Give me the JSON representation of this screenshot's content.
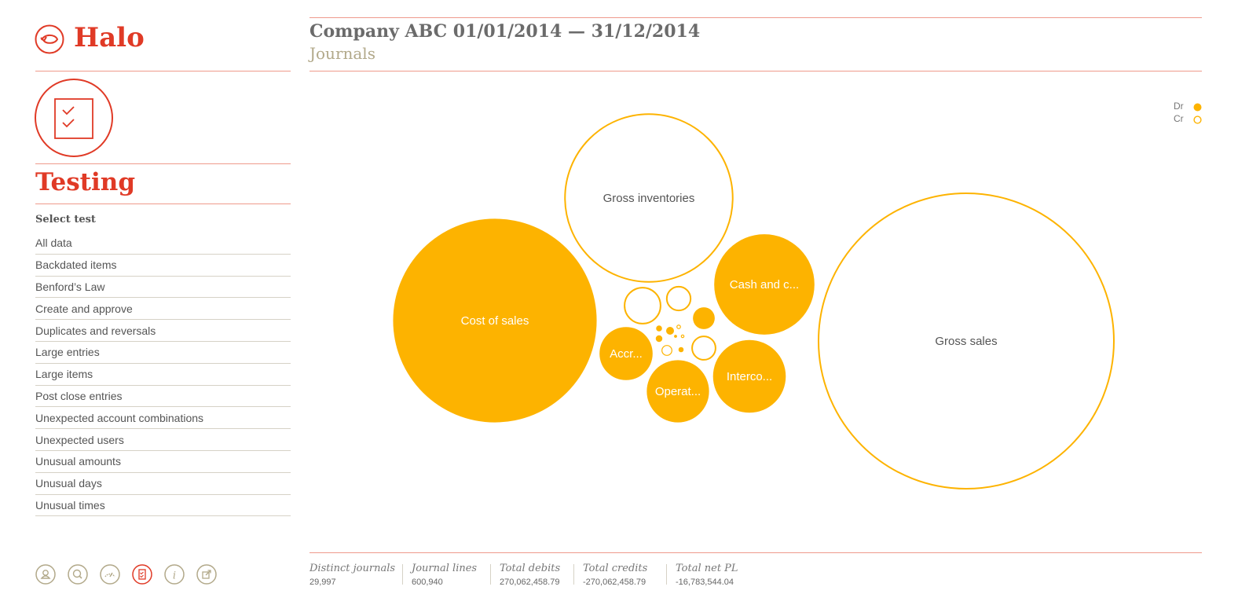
{
  "app": {
    "name": "Halo"
  },
  "section": {
    "title": "Testing",
    "select_label": "Select test"
  },
  "tests": [
    "All data",
    "Backdated items",
    "Benford’s Law",
    "Create and approve",
    "Duplicates and reversals",
    "Large entries",
    "Large items",
    "Post close entries",
    "Unexpected account combinations",
    "Unexpected users",
    "Unusual amounts",
    "Unusual days",
    "Unusual times"
  ],
  "header": {
    "title": "Company ABC 01/01/2014 — 31/12/2014",
    "subtitle": "Journals"
  },
  "legend": {
    "dr": "Dr",
    "cr": "Cr"
  },
  "colors": {
    "accent": "#e03a26",
    "bubble": "#fdb300",
    "rule": "#ef9a8c"
  },
  "footer_icons": [
    "user-icon",
    "search-icon",
    "speedometer-icon",
    "checklist-icon",
    "info-icon",
    "export-icon"
  ],
  "stats": [
    {
      "label": "Distinct journals",
      "value": "29,997"
    },
    {
      "label": "Journal lines",
      "value": "600,940"
    },
    {
      "label": "Total debits",
      "value": "270,062,458.79"
    },
    {
      "label": "Total credits",
      "value": "-270,062,458.79"
    },
    {
      "label": "Total net PL",
      "value": "-16,783,544.04"
    }
  ],
  "chart_data": {
    "type": "bubble",
    "legend_position": "top-right",
    "bubbles": [
      {
        "label": "Gross sales",
        "type": "Cr",
        "size": 100
      },
      {
        "label": "Cost of sales",
        "type": "Dr",
        "size": 47
      },
      {
        "label": "Gross inventories",
        "type": "Cr",
        "size": 32.5
      },
      {
        "label": "Cash and c...",
        "type": "Dr",
        "size": 11.4
      },
      {
        "label": "Interco...",
        "type": "Dr",
        "size": 6
      },
      {
        "label": "Operat...",
        "type": "Dr",
        "size": 4.4
      },
      {
        "label": "Accr...",
        "type": "Dr",
        "size": 3.2
      },
      {
        "label": "",
        "type": "Cr",
        "size": 1.6
      },
      {
        "label": "",
        "type": "Cr",
        "size": 0.73
      },
      {
        "label": "",
        "type": "Dr",
        "size": 0.54
      },
      {
        "label": "",
        "type": "Cr",
        "size": 0.71
      },
      {
        "label": "",
        "type": "Cr",
        "size": 0.15
      },
      {
        "label": "",
        "type": "Dr",
        "size": 0.07
      },
      {
        "label": "",
        "type": "Dr",
        "size": 0.04
      },
      {
        "label": "",
        "type": "Dr",
        "size": 0.05
      },
      {
        "label": "",
        "type": "Cr",
        "size": 0.03
      },
      {
        "label": "",
        "type": "Dr",
        "size": 0.03
      },
      {
        "label": "",
        "type": "Cr",
        "size": 0.02
      },
      {
        "label": "",
        "type": "Dr",
        "size": 0.01
      }
    ]
  }
}
